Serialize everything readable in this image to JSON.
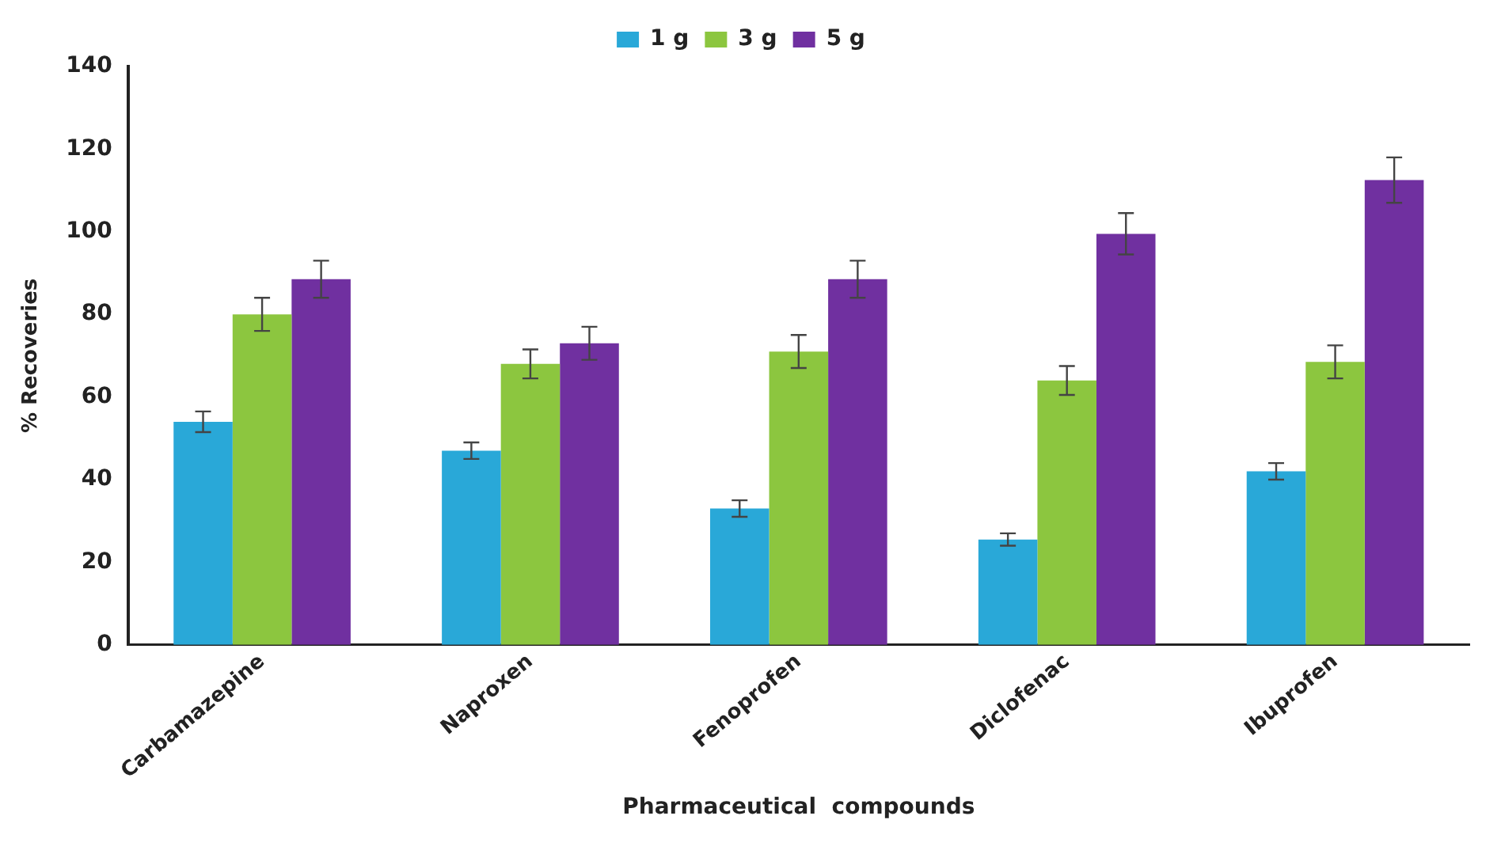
{
  "chart_data": {
    "type": "bar",
    "xlabel": "Pharmaceutical  compounds",
    "ylabel": "% Recoveries",
    "categories": [
      "Carbamazepine",
      "Naproxen",
      "Fenoprofen",
      "Diclofenac",
      "Ibuprofen"
    ],
    "series": [
      {
        "name": "1 g",
        "color": "#29a8d8",
        "values": [
          54,
          47,
          33,
          25.5,
          42
        ],
        "errors": [
          2.5,
          2,
          2,
          1.5,
          2
        ]
      },
      {
        "name": "3 g",
        "color": "#8cc63f",
        "values": [
          80,
          68,
          71,
          64,
          68.5
        ],
        "errors": [
          4,
          3.5,
          4,
          3.5,
          4
        ]
      },
      {
        "name": "5 g",
        "color": "#7030a0",
        "values": [
          88.5,
          73,
          88.5,
          99.5,
          112.5
        ],
        "errors": [
          4.5,
          4,
          4.5,
          5,
          5.5
        ]
      }
    ],
    "ylim": [
      0,
      140
    ],
    "yticks": [
      0,
      20,
      40,
      60,
      80,
      100,
      120,
      140
    ],
    "grid": false,
    "legend": "top"
  }
}
